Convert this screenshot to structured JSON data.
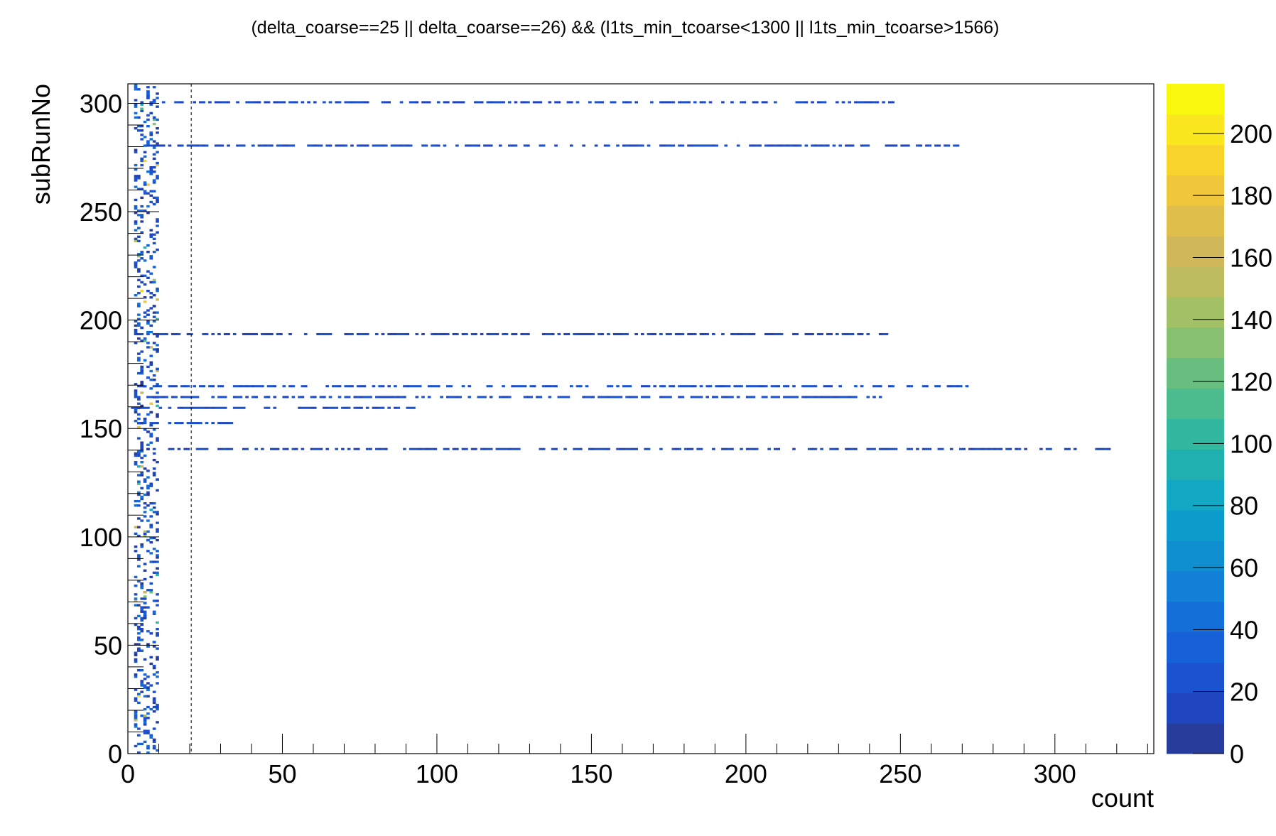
{
  "chart_data": {
    "type": "heatmap",
    "title": "(delta_coarse==25 || delta_coarse==26) && (l1ts_min_tcoarse<1300 || l1ts_min_tcoarse>1566)",
    "xlabel": "count",
    "ylabel": "subRunNo",
    "xlim": [
      0,
      332
    ],
    "ylim": [
      0,
      309
    ],
    "zlim": [
      0,
      216
    ],
    "x_ticks": [
      0,
      50,
      100,
      150,
      200,
      250,
      300
    ],
    "y_ticks": [
      0,
      50,
      100,
      150,
      200,
      250,
      300
    ],
    "z_ticks": [
      0,
      20,
      40,
      60,
      80,
      100,
      120,
      140,
      160,
      180,
      200
    ],
    "colorbar_colors": [
      "#283c9c",
      "#1f45bf",
      "#1a52d0",
      "#1660d8",
      "#1470d8",
      "#1280d4",
      "#0f8ed0",
      "#0e9ccc",
      "#12a8c4",
      "#20b0b0",
      "#32b89e",
      "#4cbc8e",
      "#68be7e",
      "#86c070",
      "#a2c066",
      "#bcbc5e",
      "#d0b85a",
      "#dfbe4c",
      "#efc63c",
      "#f8d32c",
      "#fae720",
      "#f8f80e"
    ],
    "reference_line_x": 20.5,
    "grid": false,
    "legend": "none",
    "dense_rows": [
      {
        "y": 300.5,
        "x_range": [
          6,
          247
        ],
        "value": 12
      },
      {
        "y": 280.5,
        "x_range": [
          3,
          268
        ],
        "value": 12
      },
      {
        "y": 193.5,
        "x_range": [
          2,
          247
        ],
        "value": 12
      },
      {
        "y": 169.5,
        "x_range": [
          3,
          271
        ],
        "value": 15
      },
      {
        "y": 164.5,
        "x_range": [
          2,
          243
        ],
        "value": 15
      },
      {
        "y": 159.5,
        "x_range": [
          1,
          93
        ],
        "value": 15
      },
      {
        "y": 152.5,
        "x_range": [
          3,
          33
        ],
        "value": 12
      },
      {
        "y": 140.5,
        "x_range": [
          4,
          320
        ],
        "value": 12
      }
    ],
    "low_count_band": {
      "x_range": [
        2,
        10
      ],
      "y_range": [
        0,
        309
      ],
      "value_range": [
        2,
        216
      ]
    }
  }
}
